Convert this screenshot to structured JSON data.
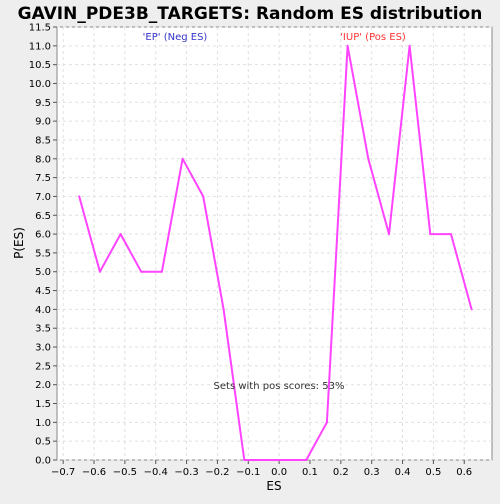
{
  "chart_data": {
    "type": "line",
    "title": "GAVIN_PDE3B_TARGETS: Random ES distribution",
    "xlabel": "ES",
    "ylabel": "P(ES)",
    "xlim": [
      -0.72,
      0.69
    ],
    "ylim": [
      0,
      11.5
    ],
    "x_ticks": [
      -0.7,
      -0.6,
      -0.5,
      -0.4,
      -0.3,
      -0.2,
      -0.1,
      0.0,
      0.1,
      0.2,
      0.3,
      0.4,
      0.5,
      0.6
    ],
    "x_tick_labels": [
      "−0.7",
      "−0.6",
      "−0.5",
      "−0.4",
      "−0.3",
      "−0.2",
      "−0.1",
      "0.0",
      "0.1",
      "0.2",
      "0.3",
      "0.4",
      "0.5",
      "0.6"
    ],
    "y_ticks": [
      0.0,
      0.5,
      1.0,
      1.5,
      2.0,
      2.5,
      3.0,
      3.5,
      4.0,
      4.5,
      5.0,
      5.5,
      6.0,
      6.5,
      7.0,
      7.5,
      8.0,
      8.5,
      9.0,
      9.5,
      10.0,
      10.5,
      11.0,
      11.5
    ],
    "y_tick_labels": [
      "0.0",
      "0.5",
      "1.0",
      "1.5",
      "2.0",
      "2.5",
      "3.0",
      "3.5",
      "4.0",
      "4.5",
      "5.0",
      "5.5",
      "6.0",
      "6.5",
      "7.0",
      "7.5",
      "8.0",
      "8.5",
      "9.0",
      "9.5",
      "10.0",
      "10.5",
      "11.0",
      "11.5"
    ],
    "grid": true,
    "series": [
      {
        "color": "#ff44ff",
        "x": [
          -0.648,
          -0.581,
          -0.514,
          -0.447,
          -0.38,
          -0.313,
          -0.246,
          -0.18,
          -0.113,
          -0.046,
          0.021,
          0.088,
          0.155,
          0.222,
          0.289,
          0.356,
          0.423,
          0.49,
          0.557,
          0.624
        ],
        "y": [
          7.0,
          5.0,
          6.0,
          5.0,
          5.0,
          8.0,
          7.0,
          4.0,
          0.0,
          0.0,
          0.0,
          0.0,
          1.0,
          11.0,
          8.0,
          6.0,
          11.0,
          6.0,
          6.0,
          4.0
        ]
      }
    ],
    "annotations": [
      {
        "text": "'EP' (Neg ES)",
        "color": "#3333cc"
      },
      {
        "text": "'IUP' (Pos ES)",
        "color": "#ff3333"
      },
      {
        "text": "Sets with pos scores: 53%",
        "color": "#333333"
      }
    ]
  }
}
